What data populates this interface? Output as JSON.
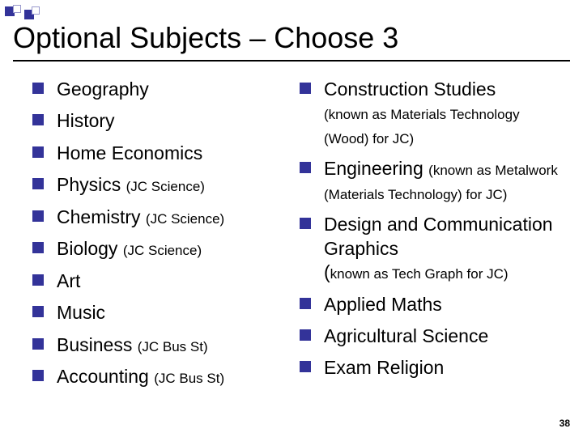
{
  "colors": {
    "accent": "#333399",
    "border": "#9999cc",
    "white": "#ffffff",
    "text": "#000000",
    "rule": "#000000"
  },
  "deco_squares": [
    {
      "size": 12,
      "fill": "#333399",
      "border": "#333399"
    },
    {
      "size": 10,
      "fill": "#ffffff",
      "border": "#9999cc"
    },
    {
      "size": 12,
      "fill": "#333399",
      "border": "#333399"
    },
    {
      "size": 10,
      "fill": "#ffffff",
      "border": "#9999cc"
    }
  ],
  "title": "Optional Subjects – Choose 3",
  "title_fontsize": 36,
  "body_fontsize": 23,
  "sub_fontsize": 17,
  "bullet": {
    "size": 14,
    "color": "#333399"
  },
  "left_items": [
    {
      "main": "Geography"
    },
    {
      "main": "History"
    },
    {
      "main": "Home Economics"
    },
    {
      "main": "Physics ",
      "sub": "(JC Science)"
    },
    {
      "main": "Chemistry ",
      "sub": "(JC Science)"
    },
    {
      "main": "Biology ",
      "sub": "(JC Science)"
    },
    {
      "main": "Art"
    },
    {
      "main": "Music"
    },
    {
      "main": "Business ",
      "sub": "(JC Bus St)"
    },
    {
      "main": "Accounting ",
      "sub": "(JC Bus St)"
    }
  ],
  "right_items": [
    {
      "main": "Construction Studies",
      "note": "(known as Materials Technology (Wood) for JC)"
    },
    {
      "main": "Engineering ",
      "sub": "(known as Metalwork (Materials Technology) for JC)"
    },
    {
      "main": "Design and Communication Graphics",
      "note_open_paren_big": true,
      "note": "known as Tech Graph for JC)"
    },
    {
      "main": "Applied Maths"
    },
    {
      "main": "Agricultural Science"
    },
    {
      "main": "Exam Religion"
    }
  ],
  "page_number": "38"
}
